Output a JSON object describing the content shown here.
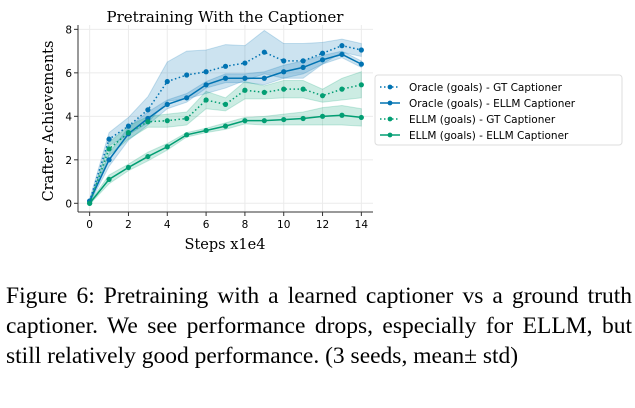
{
  "chart_data": {
    "type": "line",
    "title": "Pretraining With the Captioner",
    "xlabel": "Steps x1e4",
    "ylabel": "Crafter Achievements",
    "xlim": [
      -0.6,
      14.6
    ],
    "ylim": [
      -0.4,
      8.2
    ],
    "xticks": [
      0,
      2,
      4,
      6,
      8,
      10,
      12,
      14
    ],
    "yticks": [
      0,
      2,
      4,
      6,
      8
    ],
    "grid": true,
    "legend_position": "right",
    "x": [
      0,
      1,
      2,
      3,
      4,
      5,
      6,
      7,
      8,
      9,
      10,
      11,
      12,
      13,
      14
    ],
    "series": [
      {
        "name": "Oracle (goals) - GT Captioner",
        "color": "#0173b2",
        "style": "dotted",
        "values": [
          0.1,
          2.95,
          3.55,
          4.3,
          5.6,
          5.9,
          6.05,
          6.3,
          6.45,
          6.95,
          6.55,
          6.55,
          6.9,
          7.25,
          7.05
        ],
        "std": [
          0.1,
          0.3,
          0.4,
          0.6,
          0.9,
          1.1,
          1.0,
          1.0,
          0.8,
          1.0,
          0.8,
          0.8,
          0.5,
          0.3,
          0.3
        ]
      },
      {
        "name": "Oracle (goals) - ELLM Captioner",
        "color": "#0173b2",
        "style": "solid",
        "values": [
          0.1,
          2.0,
          3.2,
          3.9,
          4.55,
          4.85,
          5.45,
          5.75,
          5.75,
          5.75,
          6.05,
          6.25,
          6.6,
          6.85,
          6.4
        ],
        "std": [
          0.1,
          0.3,
          0.3,
          0.3,
          0.2,
          0.2,
          0.15,
          0.2,
          0.2,
          0.3,
          0.3,
          0.3,
          0.2,
          0.15,
          0.15
        ]
      },
      {
        "name": "ELLM (goals) - GT Captioner",
        "color": "#029e73",
        "style": "dotted",
        "values": [
          0.0,
          2.5,
          3.25,
          3.75,
          3.8,
          3.9,
          4.75,
          4.55,
          5.2,
          5.1,
          5.25,
          5.25,
          4.95,
          5.25,
          5.45
        ],
        "std": [
          0.05,
          0.3,
          0.3,
          0.25,
          0.3,
          0.3,
          0.4,
          0.3,
          0.4,
          0.3,
          0.4,
          0.4,
          0.3,
          0.5,
          0.6
        ]
      },
      {
        "name": "ELLM (goals) - ELLM Captioner",
        "color": "#029e73",
        "style": "solid",
        "values": [
          0.0,
          1.1,
          1.65,
          2.15,
          2.6,
          3.15,
          3.35,
          3.55,
          3.8,
          3.8,
          3.85,
          3.9,
          4.0,
          4.05,
          3.95
        ],
        "std": [
          0.05,
          0.2,
          0.15,
          0.2,
          0.15,
          0.1,
          0.1,
          0.15,
          0.15,
          0.2,
          0.25,
          0.3,
          0.4,
          0.45,
          0.4
        ]
      }
    ]
  },
  "caption": "Figure 6: Pretraining with a learned captioner vs a ground truth captioner. We see performance drops, especially for ELLM, but still relatively good performance. (3 seeds, mean± std)"
}
